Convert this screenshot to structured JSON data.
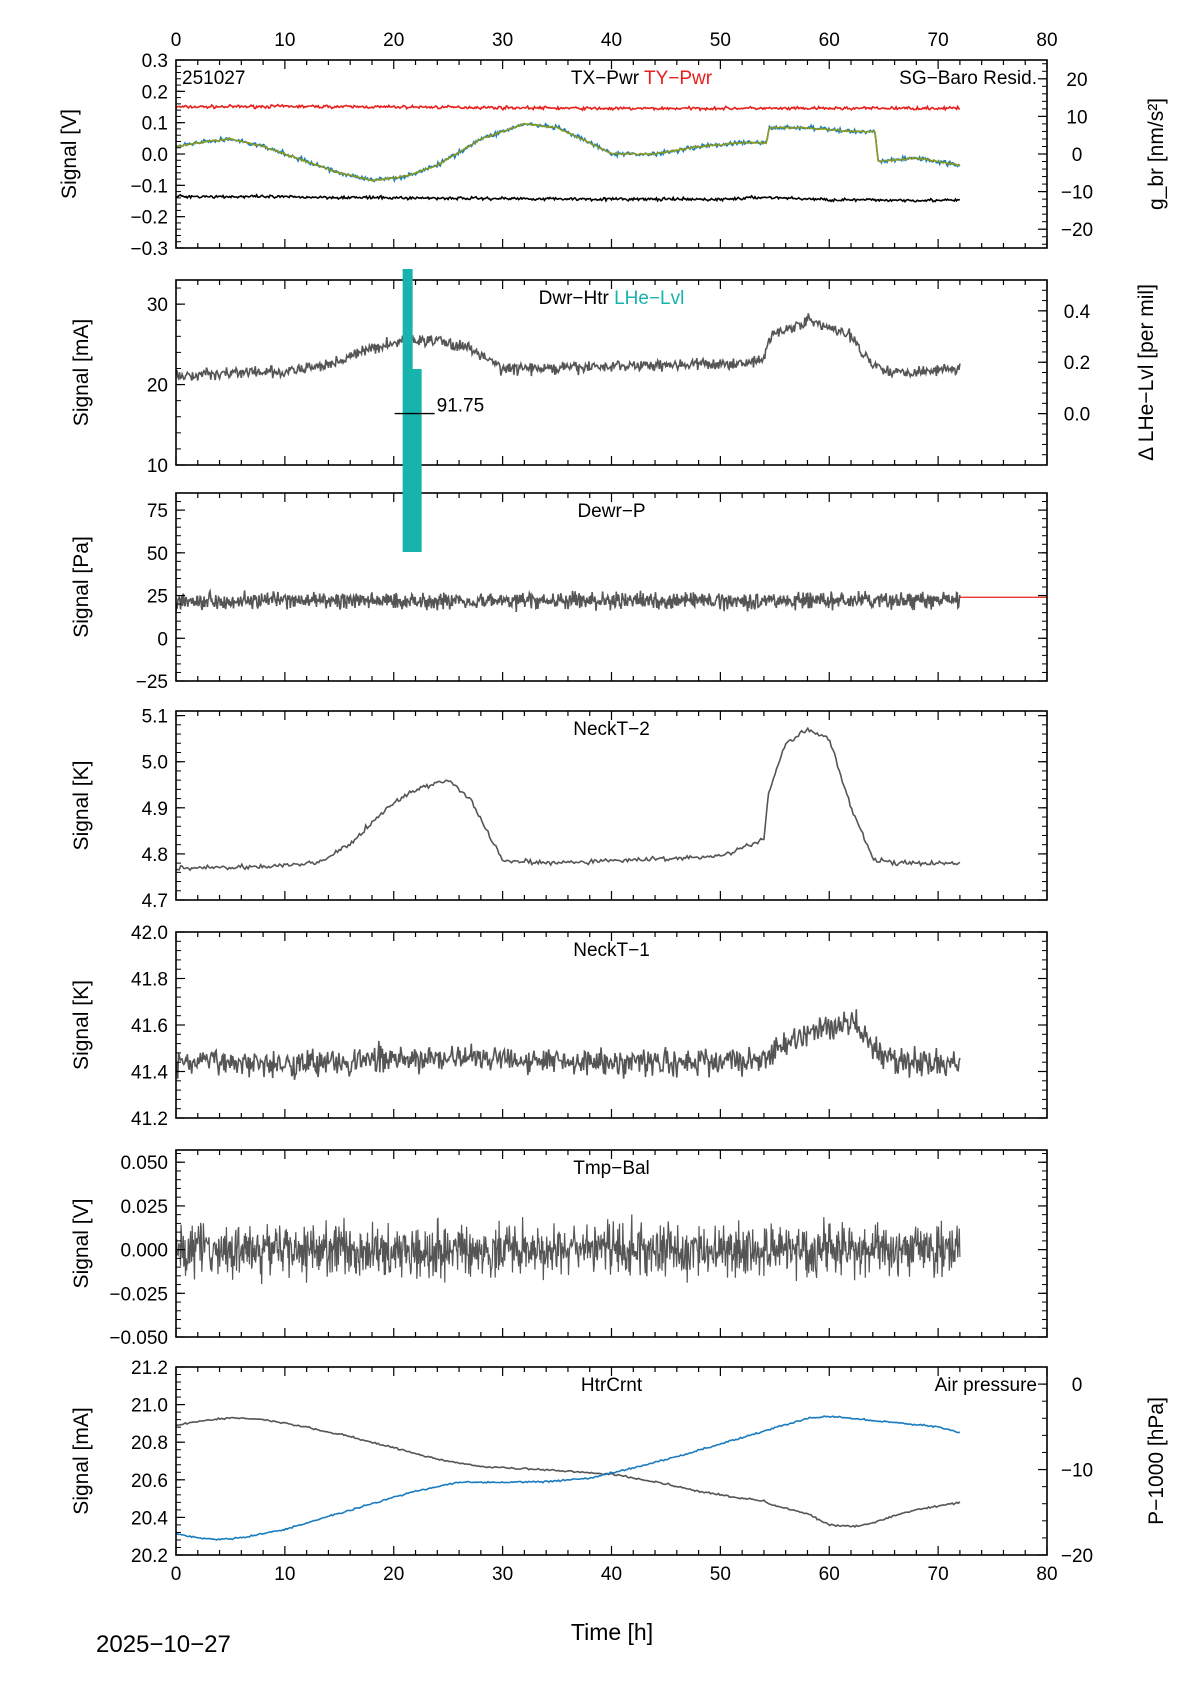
{
  "figure": {
    "date_label": "2025−10−27",
    "x_label": "Time [h]"
  },
  "chart_data": [
    {
      "type": "line",
      "id": "p1",
      "tag": "251027",
      "titles": [
        {
          "text": "TX−Pwr",
          "color": "#000000"
        },
        {
          "text": "TY−Pwr",
          "color": "#e8201c"
        }
      ],
      "right_title": {
        "text": "SG−Baro Resid.",
        "color": "#1a7cbf"
      },
      "ylabel": "Signal [V]",
      "ylim": [
        -0.3,
        0.3
      ],
      "yticks": [
        -0.3,
        -0.2,
        -0.1,
        0.0,
        0.1,
        0.2,
        0.3
      ],
      "yticklabels": [
        "−0.3",
        "−0.2",
        "−0.1",
        "0.0",
        "0.1",
        "0.2",
        "0.3"
      ],
      "y2label": "g_br [nm/s²]",
      "y2lim": [
        -25,
        25
      ],
      "y2ticks": [
        -20,
        -10,
        0,
        10,
        20
      ],
      "y2ticklabels": [
        "−20",
        "−10",
        "0",
        "10",
        "20"
      ],
      "xlim": [
        0,
        80
      ],
      "series": [
        {
          "axis": "y",
          "color": "#e8201c",
          "x": [
            0,
            10,
            20,
            21.8,
            30,
            40,
            54,
            55,
            64,
            65,
            72
          ],
          "y": [
            0.15,
            0.152,
            0.15,
            0.15,
            0.148,
            0.145,
            0.146,
            0.145,
            0.146,
            0.146,
            0.146
          ]
        },
        {
          "axis": "y",
          "color": "#000000",
          "x": [
            0,
            10,
            20,
            30,
            40,
            50,
            54,
            60,
            64,
            72
          ],
          "y": [
            -0.135,
            -0.137,
            -0.14,
            -0.142,
            -0.144,
            -0.145,
            -0.138,
            -0.146,
            -0.147,
            -0.148
          ]
        },
        {
          "axis": "y2",
          "color": "#1a7cbf",
          "x": [
            0,
            2,
            5,
            8,
            12,
            15,
            18,
            21,
            24,
            28,
            32,
            35,
            38,
            40,
            44,
            48,
            52,
            54.2,
            54.5,
            58,
            62,
            64.2,
            64.5,
            68,
            72
          ],
          "y": [
            2,
            3,
            4,
            2,
            -2,
            -5,
            -7,
            -6,
            -3,
            4,
            8,
            7,
            3,
            0,
            0,
            2,
            3,
            3,
            7,
            7,
            6,
            6,
            -2,
            -1,
            -3
          ]
        },
        {
          "axis": "y2",
          "color": "#8a9a1e",
          "x": [
            0,
            2,
            5,
            8,
            12,
            15,
            18,
            21,
            24,
            28,
            32,
            35,
            38,
            40,
            44,
            48,
            52,
            54.2,
            54.5,
            58,
            62,
            64.2,
            64.5,
            68,
            72
          ],
          "y": [
            2,
            3,
            4,
            2,
            -2,
            -5,
            -7,
            -6,
            -3,
            4,
            8,
            7,
            3,
            0,
            0,
            2,
            3,
            3,
            7,
            7,
            6,
            6,
            -2,
            -1,
            -3
          ]
        }
      ]
    },
    {
      "type": "line",
      "id": "p2",
      "titles": [
        {
          "text": "Dwr−Htr",
          "color": "#000000"
        },
        {
          "text": "LHe−Lvl",
          "color": "#17b3ad"
        }
      ],
      "ylabel": "Signal [mA]",
      "ylim": [
        10,
        33
      ],
      "yticks": [
        10,
        20,
        30
      ],
      "yticklabels": [
        "10",
        "20",
        "30"
      ],
      "y2label": "Δ LHe−Lvl [per mil]",
      "y2lim": [
        -0.2,
        0.52
      ],
      "y2ticks": [
        0.0,
        0.2,
        0.4
      ],
      "y2ticklabels": [
        "0.0",
        "0.2",
        "0.4"
      ],
      "xlim": [
        0,
        80
      ],
      "lhe_marker": {
        "x": 21.0,
        "value": 0.0,
        "label": "91.75"
      },
      "series": [
        {
          "axis": "y",
          "color": "#555555",
          "x": [
            0,
            5,
            10,
            14,
            18,
            21,
            24,
            27,
            30,
            35,
            40,
            45,
            50,
            54,
            54.5,
            58,
            62,
            64,
            66,
            72
          ],
          "y": [
            21,
            21.5,
            21.5,
            22.5,
            24.5,
            25.5,
            25.5,
            24.5,
            22,
            22,
            22.3,
            22.5,
            22.5,
            23,
            26,
            28,
            26,
            22.5,
            21.5,
            22
          ]
        }
      ]
    },
    {
      "type": "line",
      "id": "p3",
      "titles": [
        {
          "text": "Dewr−P",
          "color": "#000000"
        }
      ],
      "ylabel": "Signal [Pa]",
      "ylim": [
        -25,
        85
      ],
      "yticks": [
        -25,
        0,
        25,
        50,
        75
      ],
      "yticklabels": [
        "−25",
        "0",
        "25",
        "50",
        "75"
      ],
      "xlim": [
        0,
        80
      ],
      "reference_line": {
        "x": [
          72,
          80
        ],
        "y": 24,
        "color": "#e8201c"
      },
      "series": [
        {
          "axis": "y",
          "color": "#555555",
          "x": [
            0,
            10,
            20,
            30,
            40,
            50,
            60,
            72
          ],
          "y": [
            22,
            22,
            22,
            22,
            22,
            22,
            22,
            22
          ]
        }
      ]
    },
    {
      "type": "line",
      "id": "p4",
      "titles": [
        {
          "text": "NeckT−2",
          "color": "#000000"
        }
      ],
      "ylabel": "Signal [K]",
      "ylim": [
        4.7,
        5.11
      ],
      "yticks": [
        4.7,
        4.8,
        4.9,
        5.0,
        5.1
      ],
      "yticklabels": [
        "4.7",
        "4.8",
        "4.9",
        "5.0",
        "5.1"
      ],
      "xlim": [
        0,
        80
      ],
      "series": [
        {
          "axis": "y",
          "color": "#555555",
          "x": [
            0,
            4,
            10,
            13,
            16,
            18,
            20,
            22,
            25,
            27,
            30,
            35,
            40,
            45,
            50,
            54,
            54.4,
            56,
            58,
            60,
            62,
            64,
            66,
            72
          ],
          "y": [
            4.77,
            4.77,
            4.775,
            4.78,
            4.82,
            4.87,
            4.91,
            4.94,
            4.96,
            4.92,
            4.785,
            4.78,
            4.785,
            4.79,
            4.795,
            4.83,
            4.93,
            5.04,
            5.07,
            5.05,
            4.9,
            4.79,
            4.78,
            4.78
          ]
        }
      ]
    },
    {
      "type": "line",
      "id": "p5",
      "titles": [
        {
          "text": "NeckT−1",
          "color": "#000000"
        }
      ],
      "ylabel": "Signal [K]",
      "ylim": [
        41.2,
        42.0
      ],
      "yticks": [
        41.2,
        41.4,
        41.6,
        41.8,
        42.0
      ],
      "yticklabels": [
        "41.2",
        "41.4",
        "41.6",
        "41.8",
        "42.0"
      ],
      "xlim": [
        0,
        80
      ],
      "series": [
        {
          "axis": "y",
          "color": "#555555",
          "x": [
            0,
            10,
            20,
            30,
            40,
            50,
            54,
            58,
            62,
            64,
            66,
            72
          ],
          "y": [
            41.44,
            41.44,
            41.45,
            41.46,
            41.44,
            41.44,
            41.46,
            41.56,
            41.62,
            41.5,
            41.44,
            41.44
          ]
        }
      ]
    },
    {
      "type": "line",
      "id": "p6",
      "titles": [
        {
          "text": "Tmp−Bal",
          "color": "#000000"
        }
      ],
      "ylabel": "Signal [V]",
      "ylim": [
        -0.05,
        0.057
      ],
      "yticks": [
        -0.05,
        -0.025,
        0.0,
        0.025,
        0.05
      ],
      "yticklabels": [
        "−0.050",
        "−0.025",
        "0.000",
        "0.025",
        "0.050"
      ],
      "xlim": [
        0,
        80
      ],
      "series": [
        {
          "axis": "y",
          "color": "#555555",
          "x": [
            0,
            72
          ],
          "y": [
            0.0,
            0.0
          ]
        }
      ]
    },
    {
      "type": "line",
      "id": "p7",
      "titles": [
        {
          "text": "HtrCrnt",
          "color": "#000000"
        }
      ],
      "right_title": {
        "text": "Air pressure",
        "color": "#1a7cbf"
      },
      "ylabel": "Signal [mA]",
      "ylim": [
        20.2,
        21.2
      ],
      "yticks": [
        20.2,
        20.4,
        20.6,
        20.8,
        21.0,
        21.2
      ],
      "yticklabels": [
        "20.2",
        "20.4",
        "20.6",
        "20.8",
        "21.0",
        "21.2"
      ],
      "y2label": "P−1000 [hPa]",
      "y2lim": [
        -20,
        2
      ],
      "y2ticks": [
        -20,
        -10,
        0
      ],
      "y2ticklabels": [
        "−20",
        "−10",
        "0"
      ],
      "xlim": [
        0,
        80
      ],
      "xticks": [
        0,
        10,
        20,
        30,
        40,
        50,
        60,
        70,
        80
      ],
      "xticklabels": [
        "0",
        "10",
        "20",
        "30",
        "40",
        "50",
        "60",
        "70",
        "80"
      ],
      "series": [
        {
          "axis": "y",
          "color": "#555555",
          "x": [
            0,
            2,
            5,
            8,
            12,
            16,
            20,
            24,
            28,
            32,
            36,
            40,
            44,
            48,
            52,
            54,
            54.5,
            58,
            60,
            62,
            64,
            66,
            68,
            72
          ],
          "y": [
            20.89,
            20.91,
            20.93,
            20.92,
            20.88,
            20.83,
            20.77,
            20.71,
            20.67,
            20.66,
            20.645,
            20.63,
            20.59,
            20.54,
            20.5,
            20.49,
            20.47,
            20.42,
            20.36,
            20.35,
            20.37,
            20.41,
            20.44,
            20.48
          ]
        },
        {
          "axis": "y2",
          "color": "#1a7cbf",
          "x": [
            0,
            2,
            4,
            6,
            10,
            14,
            18,
            22,
            26,
            30,
            34,
            38,
            42,
            46,
            50,
            54,
            58,
            60,
            62,
            66,
            70,
            72
          ],
          "y": [
            -17.5,
            -18,
            -18.2,
            -18,
            -17,
            -15.5,
            -14,
            -12.5,
            -11.5,
            -11.5,
            -11.4,
            -11,
            -9.8,
            -8.5,
            -7,
            -5.5,
            -4,
            -3.8,
            -4,
            -4.5,
            -5,
            -5.7
          ]
        }
      ]
    }
  ]
}
